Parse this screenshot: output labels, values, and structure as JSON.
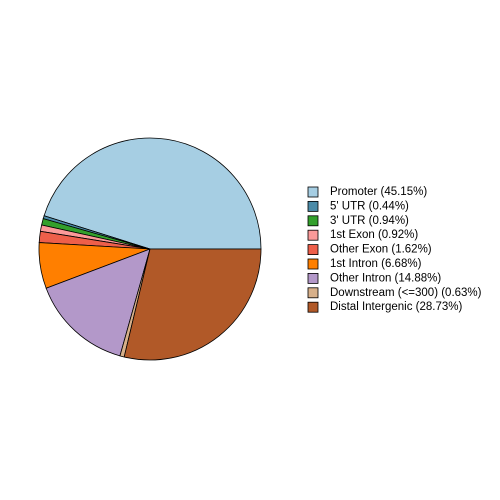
{
  "chart_data": {
    "type": "pie",
    "categories": [
      "Promoter (45.15%)",
      "5' UTR (0.44%)",
      "3' UTR (0.94%)",
      "1st Exon (0.92%)",
      "Other Exon (1.62%)",
      "1st Intron (6.68%)",
      "Other Intron (14.88%)",
      "Downstream (<=300) (0.63%)",
      "Distal Intergenic (28.73%)"
    ],
    "values": [
      45.15,
      0.44,
      0.94,
      0.92,
      1.62,
      6.68,
      14.88,
      0.63,
      28.73
    ],
    "colors": [
      "#a6cee3",
      "#4b8ba8",
      "#33a02c",
      "#fb9a99",
      "#ee5f4a",
      "#ff7f00",
      "#b398c9",
      "#d7b08a",
      "#b15928"
    ],
    "legend": "right"
  }
}
